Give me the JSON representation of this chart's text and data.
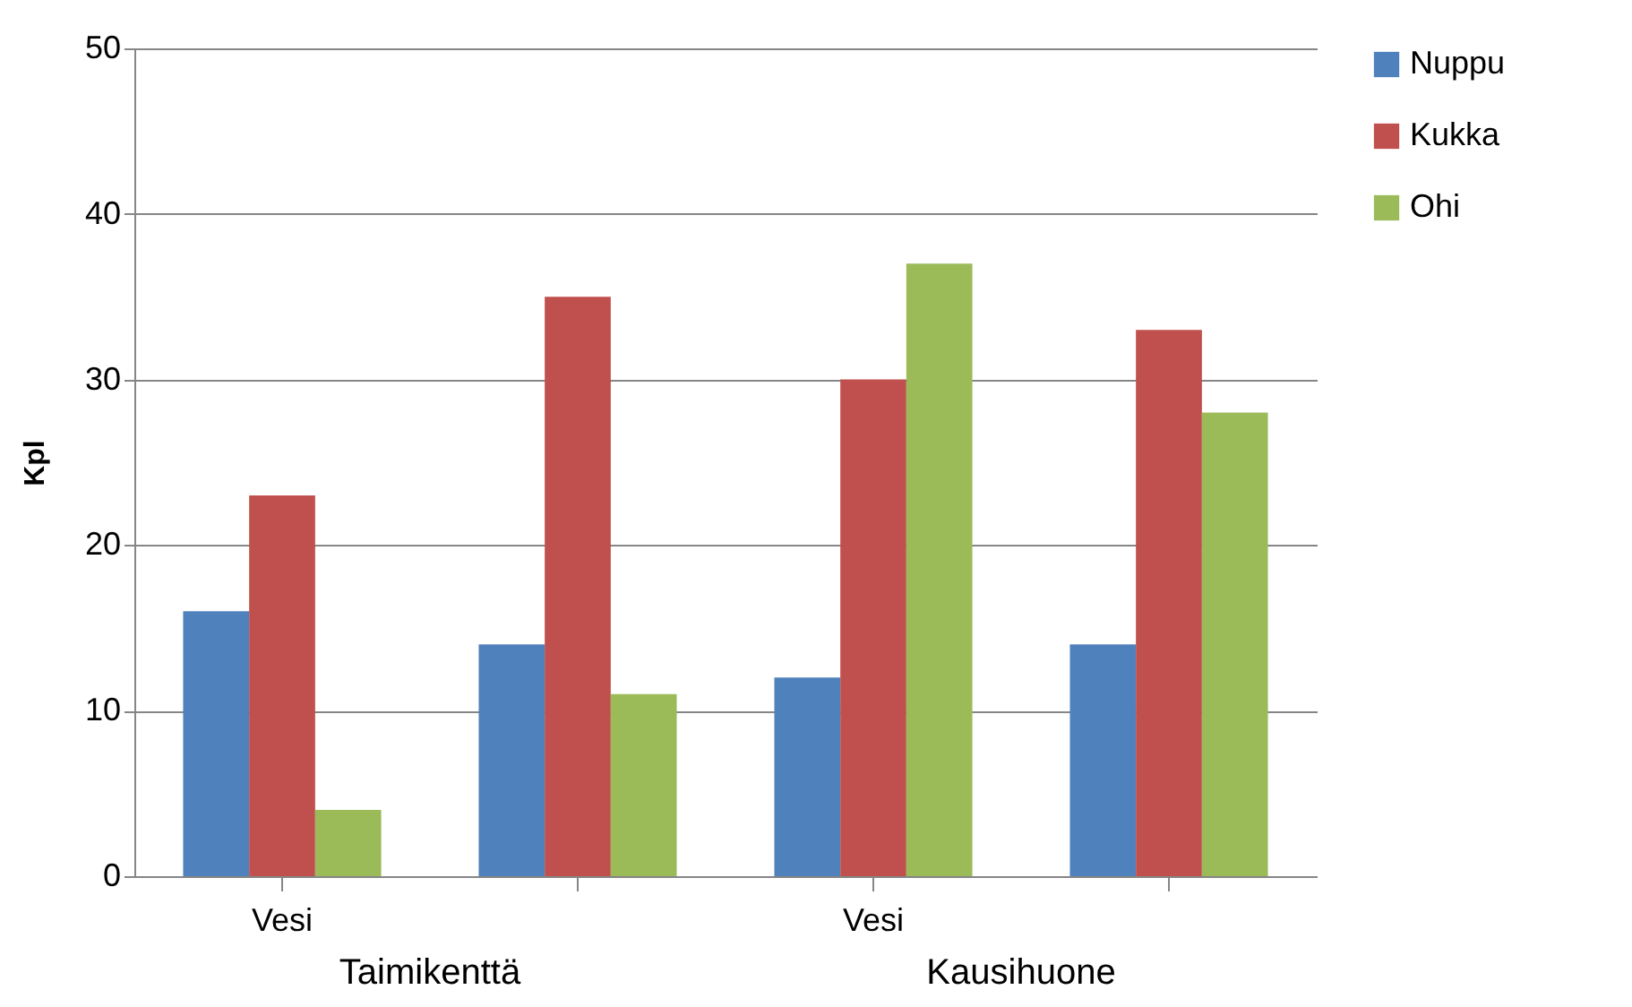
{
  "chart_data": {
    "type": "bar",
    "ylabel": "Kpl",
    "categories": [
      "Vesi",
      null,
      "Vesi",
      null
    ],
    "annotations": [
      "Taimikenttä",
      "Kausihuone"
    ],
    "series": [
      {
        "name": "Nuppu",
        "color": "#4f81bd",
        "values": [
          16,
          14,
          12,
          14
        ]
      },
      {
        "name": "Kukka",
        "color": "#c0504d",
        "values": [
          23,
          35,
          30,
          33
        ]
      },
      {
        "name": "Ohi",
        "color": "#9bbb59",
        "values": [
          4,
          11,
          37,
          28
        ]
      }
    ],
    "ylim": [
      0,
      50
    ],
    "yticks": [
      0,
      10,
      20,
      30,
      40,
      50
    ],
    "grid": "y",
    "legend": "right"
  }
}
